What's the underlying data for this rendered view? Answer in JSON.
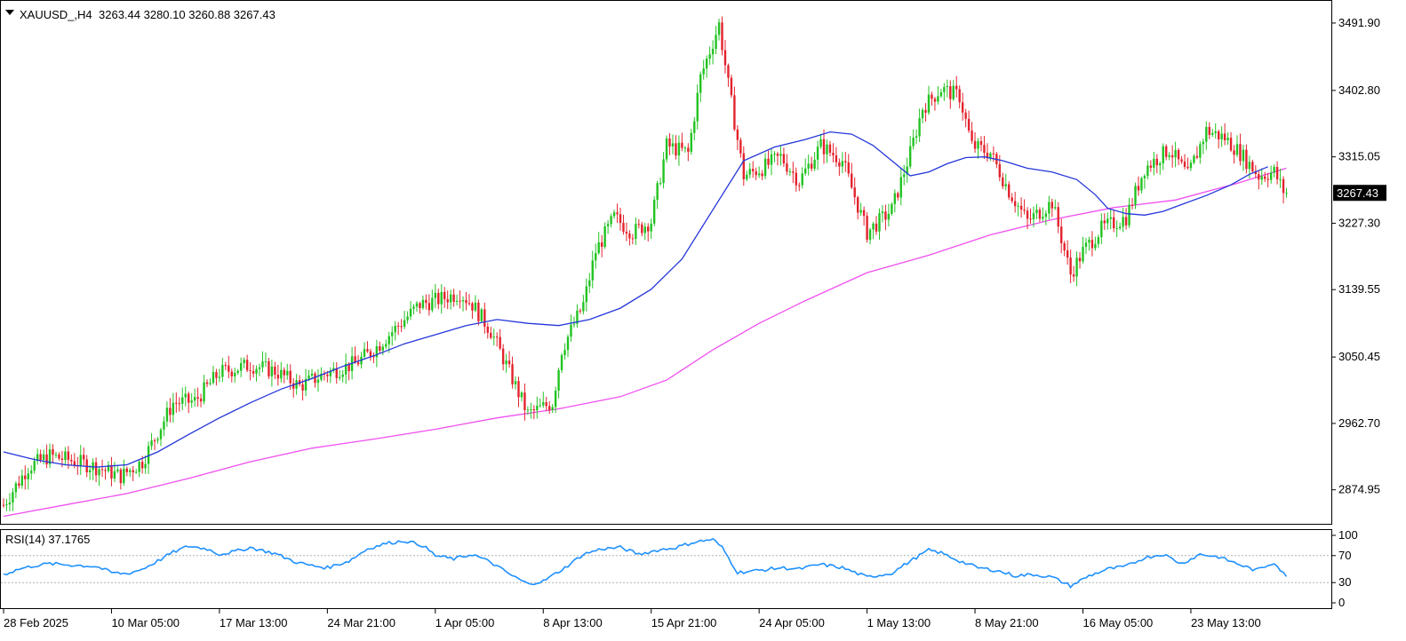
{
  "chart_data": {
    "type": "candlestick",
    "header": {
      "symbol": "XAUUSD_,H4",
      "ohlc_text": "3263.44 3280.10 3260.88 3267.43"
    },
    "last_price_label": "3267.43",
    "colors": {
      "bull": "#22c322",
      "bear": "#e3232d",
      "ma_fast": "#2436d9",
      "ma_slow": "#f04ff0",
      "rsi_line": "#1e90ff",
      "price_tag_bg": "#000000",
      "grid_border": "#000000",
      "rsi_level": "#b0b0b0"
    },
    "y_axis": {
      "range": [
        2830,
        3520
      ],
      "ticks": [
        "3491.90",
        "3402.80",
        "3315.05",
        "3227.30",
        "3139.55",
        "3050.45",
        "2962.70",
        "2874.95"
      ]
    },
    "x_axis": {
      "labels": [
        "28 Feb 2025",
        "10 Mar 05:00",
        "17 Mar 13:00",
        "24 Mar 21:00",
        "1 Apr 05:00",
        "8 Apr 13:00",
        "15 Apr 21:00",
        "24 Apr 05:00",
        "1 May 13:00",
        "8 May 21:00",
        "16 May 05:00",
        "23 May 13:00"
      ],
      "label_bar_index": [
        0,
        35,
        70,
        105,
        140,
        175,
        210,
        245,
        280,
        315,
        350,
        385
      ]
    },
    "price_path": [
      [
        0,
        2855
      ],
      [
        8,
        2905
      ],
      [
        15,
        2920
      ],
      [
        24,
        2912
      ],
      [
        30,
        2905
      ],
      [
        38,
        2893
      ],
      [
        45,
        2912
      ],
      [
        55,
        2990
      ],
      [
        62,
        2992
      ],
      [
        70,
        3030
      ],
      [
        80,
        3040
      ],
      [
        88,
        3032
      ],
      [
        96,
        3012
      ],
      [
        104,
        3028
      ],
      [
        114,
        3042
      ],
      [
        120,
        3060
      ],
      [
        128,
        3092
      ],
      [
        135,
        3120
      ],
      [
        140,
        3125
      ],
      [
        148,
        3135
      ],
      [
        152,
        3120
      ],
      [
        158,
        3085
      ],
      [
        163,
        3040
      ],
      [
        170,
        2975
      ],
      [
        178,
        2990
      ],
      [
        181,
        3060
      ],
      [
        188,
        3120
      ],
      [
        192,
        3190
      ],
      [
        198,
        3235
      ],
      [
        204,
        3215
      ],
      [
        210,
        3230
      ],
      [
        215,
        3330
      ],
      [
        222,
        3320
      ],
      [
        226,
        3420
      ],
      [
        232,
        3490
      ],
      [
        235,
        3410
      ],
      [
        240,
        3290
      ],
      [
        246,
        3300
      ],
      [
        252,
        3315
      ],
      [
        258,
        3283
      ],
      [
        265,
        3330
      ],
      [
        272,
        3310
      ],
      [
        280,
        3215
      ],
      [
        288,
        3245
      ],
      [
        294,
        3320
      ],
      [
        298,
        3380
      ],
      [
        304,
        3405
      ],
      [
        310,
        3395
      ],
      [
        314,
        3330
      ],
      [
        320,
        3320
      ],
      [
        326,
        3270
      ],
      [
        332,
        3230
      ],
      [
        340,
        3255
      ],
      [
        346,
        3160
      ],
      [
        350,
        3190
      ],
      [
        356,
        3220
      ],
      [
        364,
        3235
      ],
      [
        370,
        3300
      ],
      [
        378,
        3325
      ],
      [
        384,
        3290
      ],
      [
        390,
        3350
      ],
      [
        396,
        3340
      ],
      [
        401,
        3320
      ],
      [
        407,
        3290
      ],
      [
        412,
        3295
      ],
      [
        416,
        3262
      ]
    ],
    "series": [
      {
        "kind": "ma",
        "key": "ma_fast",
        "points": [
          [
            0,
            2925
          ],
          [
            10,
            2915
          ],
          [
            20,
            2908
          ],
          [
            30,
            2905
          ],
          [
            40,
            2908
          ],
          [
            50,
            2925
          ],
          [
            60,
            2948
          ],
          [
            70,
            2970
          ],
          [
            80,
            2990
          ],
          [
            90,
            3008
          ],
          [
            100,
            3022
          ],
          [
            110,
            3038
          ],
          [
            120,
            3052
          ],
          [
            130,
            3068
          ],
          [
            140,
            3080
          ],
          [
            150,
            3092
          ],
          [
            160,
            3100
          ],
          [
            170,
            3095
          ],
          [
            180,
            3092
          ],
          [
            190,
            3100
          ],
          [
            200,
            3115
          ],
          [
            210,
            3140
          ],
          [
            220,
            3180
          ],
          [
            230,
            3245
          ],
          [
            240,
            3310
          ],
          [
            250,
            3328
          ],
          [
            260,
            3338
          ],
          [
            268,
            3348
          ],
          [
            275,
            3345
          ],
          [
            282,
            3330
          ],
          [
            288,
            3310
          ],
          [
            294,
            3290
          ],
          [
            300,
            3295
          ],
          [
            306,
            3306
          ],
          [
            312,
            3314
          ],
          [
            318,
            3315
          ],
          [
            324,
            3310
          ],
          [
            332,
            3300
          ],
          [
            340,
            3295
          ],
          [
            348,
            3285
          ],
          [
            354,
            3265
          ],
          [
            358,
            3247
          ],
          [
            364,
            3240
          ],
          [
            370,
            3238
          ],
          [
            376,
            3243
          ],
          [
            382,
            3252
          ],
          [
            390,
            3264
          ],
          [
            398,
            3278
          ],
          [
            404,
            3292
          ],
          [
            410,
            3302
          ]
        ]
      },
      {
        "kind": "ma",
        "key": "ma_slow",
        "points": [
          [
            0,
            2840
          ],
          [
            20,
            2855
          ],
          [
            40,
            2870
          ],
          [
            60,
            2890
          ],
          [
            80,
            2912
          ],
          [
            100,
            2930
          ],
          [
            120,
            2942
          ],
          [
            140,
            2955
          ],
          [
            160,
            2970
          ],
          [
            180,
            2982
          ],
          [
            200,
            2998
          ],
          [
            215,
            3020
          ],
          [
            230,
            3060
          ],
          [
            245,
            3095
          ],
          [
            260,
            3125
          ],
          [
            280,
            3162
          ],
          [
            300,
            3185
          ],
          [
            320,
            3212
          ],
          [
            340,
            3232
          ],
          [
            360,
            3248
          ],
          [
            380,
            3258
          ],
          [
            400,
            3280
          ],
          [
            416,
            3300
          ]
        ]
      }
    ],
    "rsi": {
      "label": "RSI(14) 37.1765",
      "levels": [
        70,
        30
      ],
      "scale_ticks": [
        "100",
        "70",
        "30",
        "0"
      ],
      "points": [
        [
          0,
          42
        ],
        [
          5,
          50
        ],
        [
          10,
          55
        ],
        [
          15,
          58
        ],
        [
          22,
          56
        ],
        [
          30,
          54
        ],
        [
          35,
          45
        ],
        [
          40,
          43
        ],
        [
          45,
          50
        ],
        [
          50,
          62
        ],
        [
          55,
          75
        ],
        [
          60,
          84
        ],
        [
          66,
          80
        ],
        [
          70,
          72
        ],
        [
          75,
          76
        ],
        [
          80,
          82
        ],
        [
          88,
          73
        ],
        [
          95,
          60
        ],
        [
          100,
          55
        ],
        [
          105,
          52
        ],
        [
          112,
          62
        ],
        [
          118,
          80
        ],
        [
          124,
          88
        ],
        [
          130,
          92
        ],
        [
          136,
          85
        ],
        [
          140,
          70
        ],
        [
          146,
          65
        ],
        [
          152,
          72
        ],
        [
          158,
          60
        ],
        [
          165,
          40
        ],
        [
          170,
          28
        ],
        [
          175,
          32
        ],
        [
          182,
          52
        ],
        [
          188,
          72
        ],
        [
          194,
          80
        ],
        [
          200,
          82
        ],
        [
          206,
          72
        ],
        [
          212,
          78
        ],
        [
          218,
          82
        ],
        [
          224,
          90
        ],
        [
          230,
          94
        ],
        [
          233,
          82
        ],
        [
          238,
          45
        ],
        [
          245,
          48
        ],
        [
          252,
          52
        ],
        [
          258,
          50
        ],
        [
          265,
          57
        ],
        [
          272,
          52
        ],
        [
          280,
          38
        ],
        [
          288,
          44
        ],
        [
          294,
          62
        ],
        [
          300,
          78
        ],
        [
          304,
          74
        ],
        [
          310,
          62
        ],
        [
          316,
          52
        ],
        [
          322,
          48
        ],
        [
          328,
          40
        ],
        [
          334,
          42
        ],
        [
          340,
          38
        ],
        [
          346,
          25
        ],
        [
          352,
          40
        ],
        [
          358,
          50
        ],
        [
          364,
          54
        ],
        [
          370,
          67
        ],
        [
          376,
          72
        ],
        [
          382,
          58
        ],
        [
          388,
          72
        ],
        [
          394,
          68
        ],
        [
          400,
          58
        ],
        [
          406,
          48
        ],
        [
          412,
          60
        ],
        [
          416,
          38
        ]
      ]
    }
  }
}
